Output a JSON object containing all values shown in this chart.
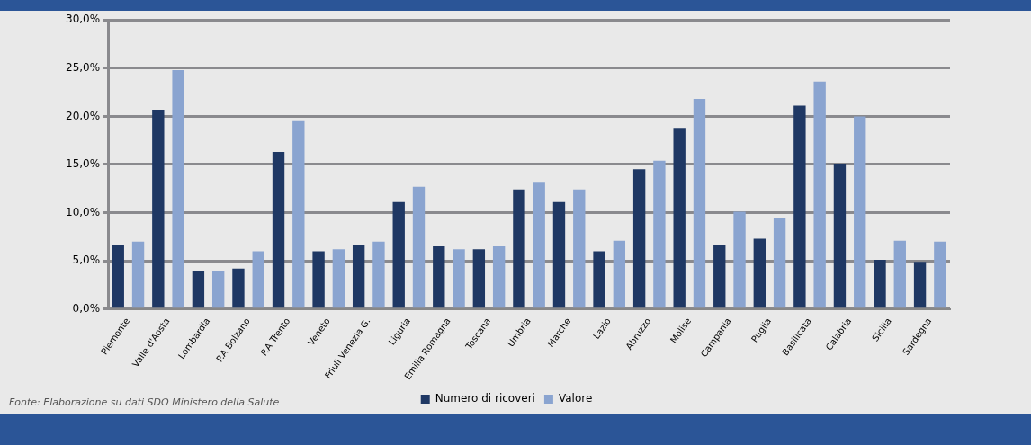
{
  "chart_data": {
    "type": "bar",
    "categories": [
      "Piemonte",
      "Valle d'Aosta",
      "Lombardia",
      "P.A Bolzano",
      "P.A Trento",
      "Veneto",
      "Friuli Venezia G.",
      "Liguria",
      "Emilia Romagna",
      "Toscana",
      "Umbria",
      "Marche",
      "Lazio",
      "Abruzzo",
      "Molise",
      "Campania",
      "Puglia",
      "Basilicata",
      "Calabria",
      "Sicilia",
      "Sardegna"
    ],
    "series": [
      {
        "name": "Numero di ricoveri",
        "color": "#1f3864",
        "values": [
          6.7,
          20.7,
          3.9,
          4.2,
          16.3,
          6.0,
          6.7,
          11.1,
          6.5,
          6.2,
          12.4,
          11.1,
          6.0,
          14.5,
          18.8,
          6.7,
          7.3,
          21.1,
          15.1,
          5.1,
          4.9
        ]
      },
      {
        "name": "Valore",
        "color": "#8aa4d0",
        "values": [
          7.0,
          24.8,
          3.9,
          6.0,
          19.5,
          6.2,
          7.0,
          12.7,
          6.2,
          6.5,
          13.1,
          12.4,
          7.1,
          15.4,
          21.8,
          10.1,
          9.4,
          23.6,
          20.0,
          7.1,
          7.0
        ]
      }
    ],
    "ylim": [
      0,
      30
    ],
    "yticks": [
      {
        "value": 0,
        "label": "0,0%"
      },
      {
        "value": 5,
        "label": "5,0%"
      },
      {
        "value": 10,
        "label": "10,0%"
      },
      {
        "value": 15,
        "label": "15,0%"
      },
      {
        "value": 20,
        "label": "20,0%"
      },
      {
        "value": 25,
        "label": "25,0%"
      },
      {
        "value": 30,
        "label": "30,0%"
      }
    ],
    "grid": "y",
    "legend": "bottom",
    "annotations": [
      "Fonte: Elaborazione su dati SDO Ministero della Salute"
    ]
  }
}
